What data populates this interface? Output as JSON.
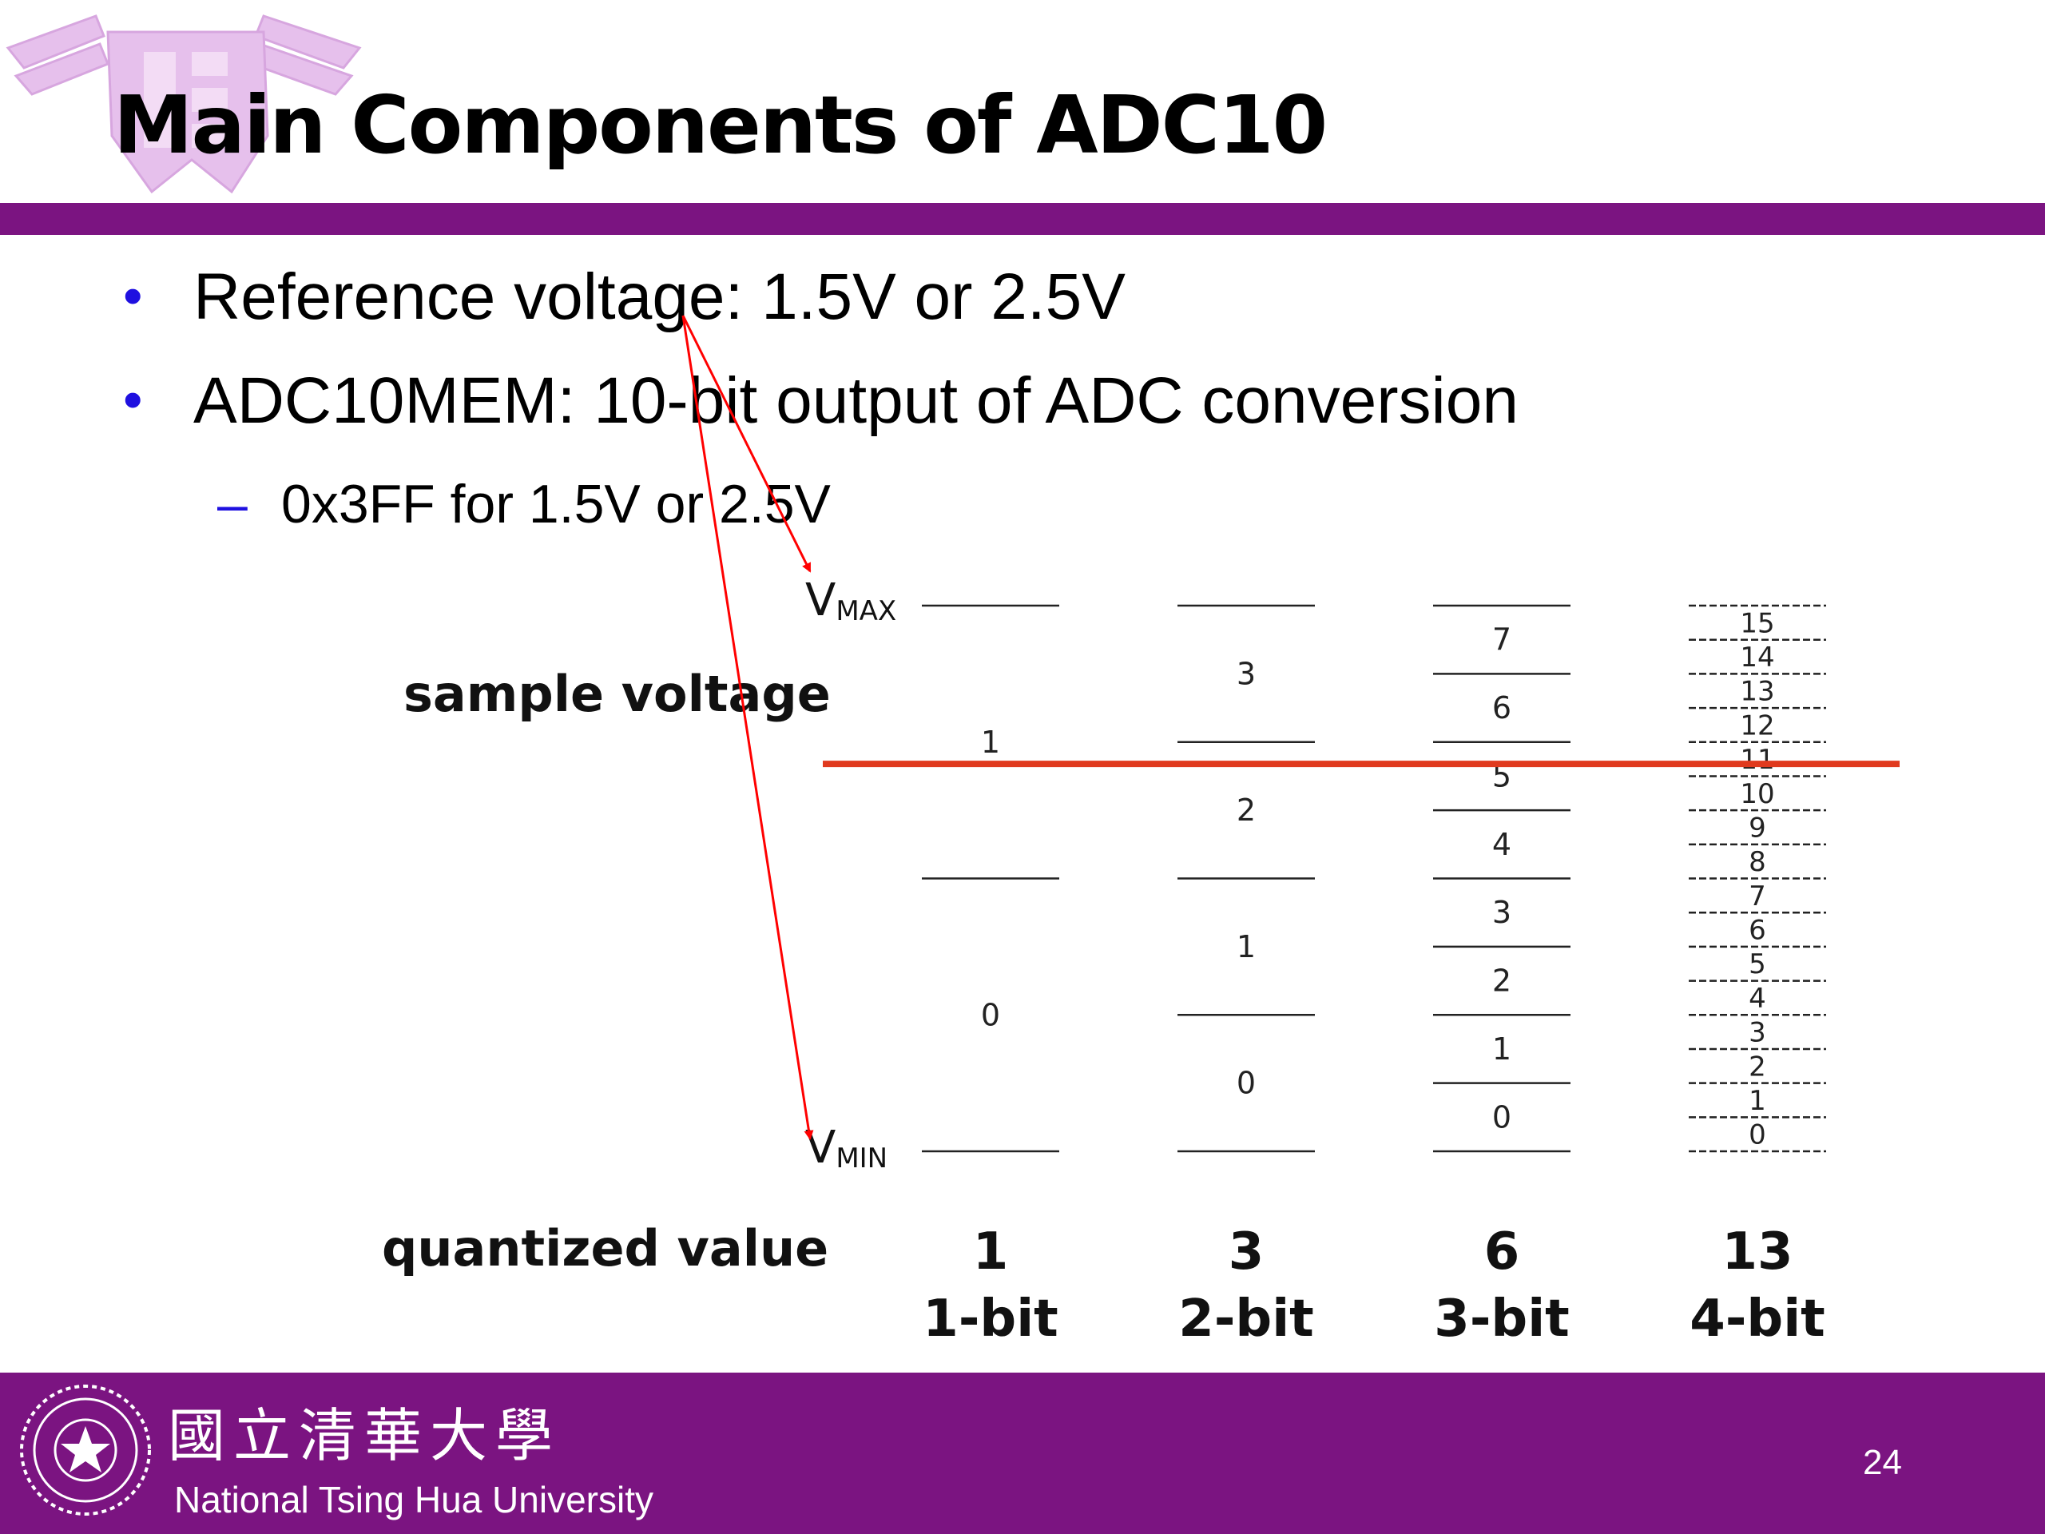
{
  "slide": {
    "title": "Main Components of ADC10",
    "page_number": "24",
    "colors": {
      "purple": "#7B1481",
      "bullet_blue": "#1F10E0",
      "sample_red": "#E03A1E",
      "arrow_red": "#FF0000",
      "logo_tint": "#E0B6E8"
    },
    "icons": {
      "logo": "nthu-watermark-logo",
      "seal": "nthu-seal-icon"
    }
  },
  "bullets": [
    {
      "text": "Reference voltage: 1.5V or 2.5V"
    },
    {
      "text": "ADC10MEM: 10-bit output of ADC conversion",
      "sub": {
        "text": "0x3FF for 1.5V or 2.5V"
      }
    }
  ],
  "quantization": {
    "sample_label": "sample voltage",
    "quantized_label": "quantized value",
    "vmax": {
      "main": "V",
      "sub": "MAX"
    },
    "vmin": {
      "main": "V",
      "sub": "MIN"
    },
    "sample_level": 0.71,
    "columns": [
      {
        "bits": 1,
        "levels": 2,
        "bit_label": "1-bit",
        "quantized": "1",
        "codes": [
          "0",
          "1"
        ]
      },
      {
        "bits": 2,
        "levels": 4,
        "bit_label": "2-bit",
        "quantized": "3",
        "codes": [
          "0",
          "1",
          "2",
          "3"
        ]
      },
      {
        "bits": 3,
        "levels": 8,
        "bit_label": "3-bit",
        "quantized": "6",
        "codes": [
          "0",
          "1",
          "2",
          "3",
          "4",
          "5",
          "6",
          "7"
        ]
      },
      {
        "bits": 4,
        "levels": 16,
        "bit_label": "4-bit",
        "quantized": "13",
        "codes": [
          "0",
          "1",
          "2",
          "3",
          "4",
          "5",
          "6",
          "7",
          "8",
          "9",
          "10",
          "11",
          "12",
          "13",
          "14",
          "15"
        ]
      }
    ]
  },
  "footer": {
    "university_cn": "國立清華大學",
    "university_en": "National Tsing Hua University"
  }
}
